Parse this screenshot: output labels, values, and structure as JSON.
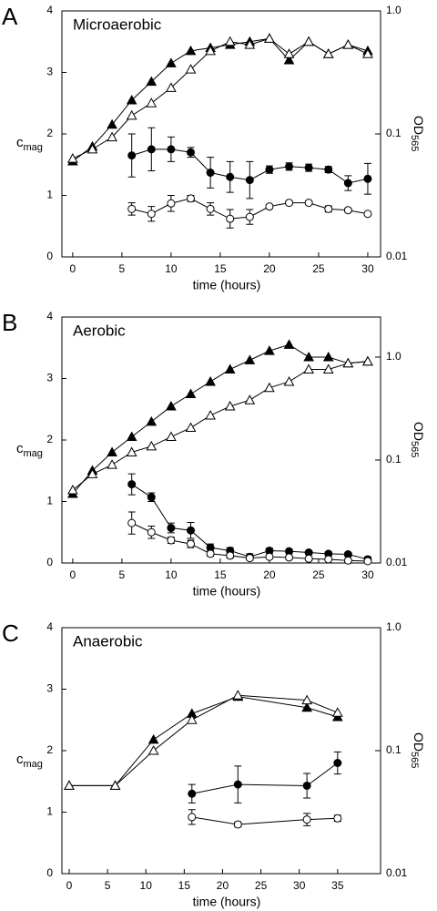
{
  "chart_data": [
    {
      "type": "line",
      "panel": "A",
      "title": "Microaerobic",
      "x_label": "time (hours)",
      "y_label": {
        "main": "c",
        "sub": "mag"
      },
      "y2_label": {
        "main": "OD",
        "sub": "565"
      },
      "xlim": [
        -1.1,
        31.3
      ],
      "xticks": [
        0,
        5,
        10,
        15,
        20,
        25,
        30
      ],
      "ylim": [
        0,
        4
      ],
      "yticks": [
        0,
        1,
        2,
        3,
        4
      ],
      "y2lim": [
        0.01,
        1
      ],
      "y2ticks": [
        0.01,
        0.1,
        {
          "value": 1,
          "label": "1.0"
        }
      ],
      "y2_scale": "log",
      "series": [
        {
          "marker": "triangle",
          "filled": true,
          "axis": "y2",
          "color": "#000000",
          "x": [
            0,
            2,
            4,
            6,
            8,
            10,
            12,
            14,
            16,
            18,
            20,
            22,
            24,
            26,
            28,
            30
          ],
          "values": [
            0.06,
            0.079,
            0.119,
            0.188,
            0.266,
            0.376,
            0.473,
            0.501,
            0.531,
            0.562,
            0.596,
            0.398,
            0.562,
            0.447,
            0.531,
            0.473
          ]
        },
        {
          "marker": "triangle",
          "filled": false,
          "axis": "y2",
          "color": "#000000",
          "x": [
            0,
            2,
            4,
            6,
            8,
            10,
            12,
            14,
            16,
            18,
            20,
            22,
            24,
            26,
            28,
            30
          ],
          "values": [
            0.063,
            0.075,
            0.094,
            0.141,
            0.178,
            0.237,
            0.335,
            0.473,
            0.562,
            0.531,
            0.596,
            0.447,
            0.562,
            0.447,
            0.531,
            0.447
          ]
        },
        {
          "marker": "circle",
          "filled": true,
          "color": "#000000",
          "x": [
            6,
            8,
            10,
            12,
            14,
            16,
            18,
            20,
            22,
            24,
            26,
            28,
            30
          ],
          "values": [
            1.65,
            1.75,
            1.75,
            1.7,
            1.37,
            1.3,
            1.25,
            1.42,
            1.47,
            1.45,
            1.42,
            1.2,
            1.27
          ],
          "errors": [
            0.35,
            0.35,
            0.2,
            0.08,
            0.25,
            0.25,
            0.3,
            0.06,
            0.06,
            0.06,
            0.05,
            0.12,
            0.25
          ]
        },
        {
          "marker": "circle",
          "filled": false,
          "color": "#000000",
          "x": [
            6,
            8,
            10,
            12,
            14,
            16,
            18,
            20,
            22,
            24,
            26,
            28,
            30
          ],
          "values": [
            0.78,
            0.7,
            0.87,
            0.95,
            0.78,
            0.62,
            0.65,
            0.82,
            0.88,
            0.88,
            0.78,
            0.76,
            0.7
          ],
          "errors": [
            0.1,
            0.12,
            0.13,
            0.05,
            0.1,
            0.15,
            0.12,
            0.03,
            0.03,
            0.03,
            0.05,
            0.03,
            0.03
          ]
        }
      ]
    },
    {
      "type": "line",
      "panel": "B",
      "title": "Aerobic",
      "x_label": "time (hours)",
      "y_label": {
        "main": "c",
        "sub": "mag"
      },
      "y2_label": {
        "main": "OD",
        "sub": "565"
      },
      "xlim": [
        -1.1,
        31.3
      ],
      "xticks": [
        0,
        5,
        10,
        15,
        20,
        25,
        30
      ],
      "ylim": [
        0,
        4
      ],
      "yticks": [
        0,
        1,
        2,
        3,
        4
      ],
      "y2lim": [
        0.01,
        2.45
      ],
      "y2ticks": [
        0.01,
        0.1,
        {
          "value": 1,
          "label": "1.0"
        }
      ],
      "y2_scale": "log",
      "series": [
        {
          "marker": "triangle",
          "filled": true,
          "axis": "y2",
          "color": "#000000",
          "x": [
            0,
            2,
            4,
            6,
            8,
            10,
            12,
            14,
            16,
            18,
            20,
            22,
            24,
            26,
            28,
            30
          ],
          "values": [
            0.047,
            0.079,
            0.119,
            0.168,
            0.236,
            0.333,
            0.438,
            0.577,
            0.76,
            0.933,
            1.15,
            1.32,
            1.0,
            1.0,
            0.871,
            0.908
          ]
        },
        {
          "marker": "triangle",
          "filled": false,
          "axis": "y2",
          "color": "#000000",
          "x": [
            0,
            2,
            4,
            6,
            8,
            10,
            12,
            14,
            16,
            18,
            20,
            22,
            24,
            26,
            28,
            30
          ],
          "values": [
            0.051,
            0.073,
            0.09,
            0.119,
            0.136,
            0.168,
            0.206,
            0.271,
            0.333,
            0.382,
            0.503,
            0.577,
            0.76,
            0.76,
            0.871,
            0.908
          ]
        },
        {
          "marker": "circle",
          "filled": true,
          "color": "#000000",
          "x": [
            6,
            8,
            10,
            12,
            14,
            16,
            18,
            20,
            22,
            24,
            26,
            28,
            30
          ],
          "values": [
            1.28,
            1.07,
            0.57,
            0.53,
            0.25,
            0.2,
            0.1,
            0.2,
            0.19,
            0.17,
            0.15,
            0.14,
            0.06
          ],
          "errors": [
            0.17,
            0.07,
            0.08,
            0.13,
            0.06,
            0.05,
            0.05,
            0.04,
            0.03,
            0.03,
            0.03,
            0.03,
            0.04
          ]
        },
        {
          "marker": "circle",
          "filled": false,
          "color": "#000000",
          "x": [
            6,
            8,
            10,
            12,
            14,
            16,
            18,
            20,
            22,
            24,
            26,
            28,
            30
          ],
          "values": [
            0.65,
            0.5,
            0.37,
            0.31,
            0.15,
            0.12,
            0.08,
            0.1,
            0.09,
            0.07,
            0.06,
            0.04,
            0.03
          ],
          "errors": [
            0.18,
            0.1,
            0.05,
            0.06,
            0.04,
            0.04,
            0.03,
            0.03,
            0.03,
            0.03,
            0.02,
            0.02,
            0.02
          ]
        }
      ]
    },
    {
      "type": "line",
      "panel": "C",
      "title": "Anaerobic",
      "x_label": "time (hours)",
      "y_label": {
        "main": "c",
        "sub": "mag"
      },
      "y2_label": {
        "main": "OD",
        "sub": "565"
      },
      "xlim": [
        -0.95,
        40.6
      ],
      "xticks": [
        0,
        5,
        10,
        15,
        20,
        25,
        30,
        35
      ],
      "ylim": [
        0,
        4
      ],
      "yticks": [
        0,
        1,
        2,
        3,
        4
      ],
      "y2lim": [
        0.01,
        1
      ],
      "y2ticks": [
        0.01,
        0.1,
        {
          "value": 1,
          "label": "1.0"
        }
      ],
      "y2_scale": "log",
      "series": [
        {
          "marker": "triangle",
          "filled": true,
          "axis": "y2",
          "color": "#000000",
          "x": [
            0,
            6,
            11,
            16,
            22,
            31,
            35
          ],
          "values": [
            0.052,
            0.052,
            0.123,
            0.2,
            0.275,
            0.224,
            0.188
          ]
        },
        {
          "marker": "triangle",
          "filled": false,
          "axis": "y2",
          "color": "#000000",
          "x": [
            0,
            6,
            11,
            16,
            22,
            31,
            35
          ],
          "values": [
            0.052,
            0.052,
            0.1,
            0.178,
            0.282,
            0.257,
            0.204
          ]
        },
        {
          "marker": "circle",
          "filled": true,
          "color": "#000000",
          "x": [
            16,
            22,
            31,
            35
          ],
          "values": [
            1.3,
            1.45,
            1.43,
            1.8
          ],
          "errors": [
            0.15,
            0.3,
            0.2,
            0.18
          ]
        },
        {
          "marker": "circle",
          "filled": false,
          "color": "#000000",
          "x": [
            16,
            22,
            31,
            35
          ],
          "values": [
            0.92,
            0.8,
            0.88,
            0.9
          ],
          "errors": [
            0.12,
            0.04,
            0.1,
            0.05
          ]
        }
      ]
    }
  ]
}
